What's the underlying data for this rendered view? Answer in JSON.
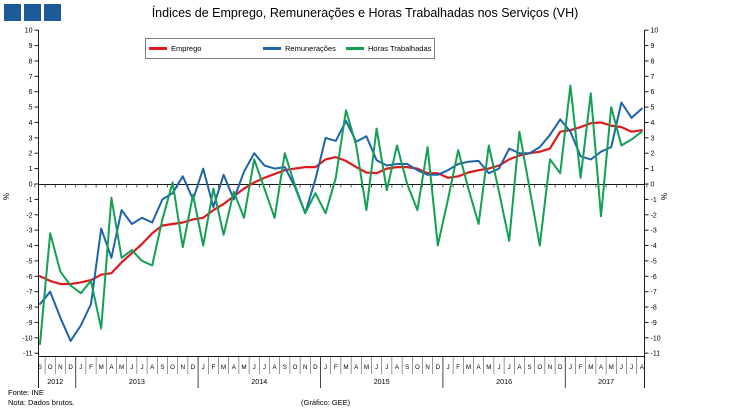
{
  "logo": {
    "square_color": "#1c5a99",
    "square_count": 3
  },
  "title": "Índices de Emprego, Remunerações e Horas Trabalhadas nos Serviços (VH)",
  "legend": {
    "items": [
      {
        "label": "Emprego",
        "color": "#e0181e"
      },
      {
        "label": "Remunerações",
        "color": "#1f63ac"
      },
      {
        "label": "Horas Trabalhadas",
        "color": "#13a053"
      }
    ]
  },
  "axis": {
    "y_max": 10,
    "y_min": -11,
    "y_step": 1,
    "unit_label": "%"
  },
  "chart_data": {
    "type": "line",
    "title": "Índices de Emprego, Remunerações e Horas Trabalhadas nos Serviços (VH)",
    "ylabel": "%",
    "ylim": [
      -11,
      10
    ],
    "grid": false,
    "legend_position": "top",
    "x_month_labels": [
      "S",
      "O",
      "N",
      "D",
      "J",
      "F",
      "M",
      "A",
      "M",
      "J",
      "J",
      "A",
      "S",
      "O",
      "N",
      "D",
      "J",
      "F",
      "M",
      "A",
      "M",
      "J",
      "J",
      "A",
      "S",
      "O",
      "N",
      "D",
      "J",
      "F",
      "M",
      "A",
      "M",
      "J",
      "J",
      "A",
      "S",
      "O",
      "N",
      "D",
      "J",
      "F",
      "M",
      "A",
      "M",
      "J",
      "J",
      "A",
      "S",
      "O",
      "N",
      "D",
      "J",
      "F",
      "M",
      "A",
      "M",
      "J",
      "J",
      "A"
    ],
    "years": [
      {
        "label": "2012",
        "span": 4
      },
      {
        "label": "2013",
        "span": 12
      },
      {
        "label": "2014",
        "span": 12
      },
      {
        "label": "2015",
        "span": 12
      },
      {
        "label": "2016",
        "span": 12
      },
      {
        "label": "2017",
        "span": 8
      }
    ],
    "series": [
      {
        "name": "Emprego",
        "color": "#e0181e",
        "width": 2.2,
        "values": [
          -6.0,
          -6.3,
          -6.5,
          -6.5,
          -6.4,
          -6.25,
          -5.9,
          -5.8,
          -5.1,
          -4.5,
          -3.9,
          -3.2,
          -2.7,
          -2.6,
          -2.5,
          -2.3,
          -2.2,
          -1.7,
          -1.3,
          -0.8,
          -0.3,
          0.1,
          0.4,
          0.65,
          0.9,
          1.0,
          1.1,
          1.1,
          1.6,
          1.75,
          1.5,
          1.1,
          0.75,
          0.7,
          1.0,
          1.1,
          1.1,
          1.0,
          0.7,
          0.7,
          0.4,
          0.5,
          0.75,
          0.9,
          1.0,
          1.2,
          1.6,
          1.85,
          2.0,
          2.1,
          2.3,
          3.4,
          3.5,
          3.7,
          3.95,
          4.0,
          3.8,
          3.7,
          3.4,
          3.5
        ]
      },
      {
        "name": "Remunerações",
        "color": "#1f63ac",
        "width": 2,
        "values": [
          -7.8,
          -7.0,
          -8.7,
          -10.2,
          -9.2,
          -7.8,
          -2.9,
          -4.8,
          -1.7,
          -2.6,
          -2.2,
          -2.5,
          -1.0,
          -0.6,
          0.5,
          -1.0,
          1.0,
          -1.5,
          0.6,
          -1.0,
          0.8,
          2.0,
          1.2,
          1.0,
          1.1,
          -0.2,
          -1.9,
          0.3,
          3.0,
          2.8,
          4.1,
          2.75,
          3.1,
          1.55,
          1.2,
          1.3,
          1.3,
          0.9,
          0.6,
          0.6,
          0.9,
          1.3,
          1.45,
          1.5,
          0.7,
          1.0,
          2.3,
          2.0,
          2.0,
          2.4,
          3.2,
          4.2,
          3.4,
          1.8,
          1.6,
          2.1,
          2.4,
          5.3,
          4.3,
          4.9
        ]
      },
      {
        "name": "Horas Trabalhadas",
        "color": "#13a053",
        "width": 2,
        "values": [
          -10.4,
          -3.2,
          -5.7,
          -6.6,
          -7.1,
          -6.3,
          -9.4,
          -0.9,
          -4.8,
          -4.3,
          -5.0,
          -5.3,
          -2.3,
          0.1,
          -4.1,
          -0.7,
          -4.0,
          -0.3,
          -3.3,
          -0.5,
          -2.2,
          1.6,
          -0.3,
          -2.2,
          2.0,
          -0.1,
          -1.9,
          -0.6,
          -1.9,
          0.4,
          4.8,
          2.5,
          -1.7,
          3.6,
          -0.4,
          2.5,
          0.0,
          -1.7,
          2.4,
          -4.0,
          -1.0,
          2.2,
          -0.3,
          -2.6,
          2.5,
          -0.5,
          -3.7,
          3.4,
          -0.3,
          -4.0,
          1.6,
          0.7,
          6.4,
          0.4,
          5.9,
          -2.1,
          5.0,
          2.5,
          2.9,
          3.4
        ]
      }
    ]
  },
  "footer": {
    "source": "Fonte: INE",
    "note": "Nota: Dados brutos.",
    "credit": "(Gráfico: GEE)"
  }
}
